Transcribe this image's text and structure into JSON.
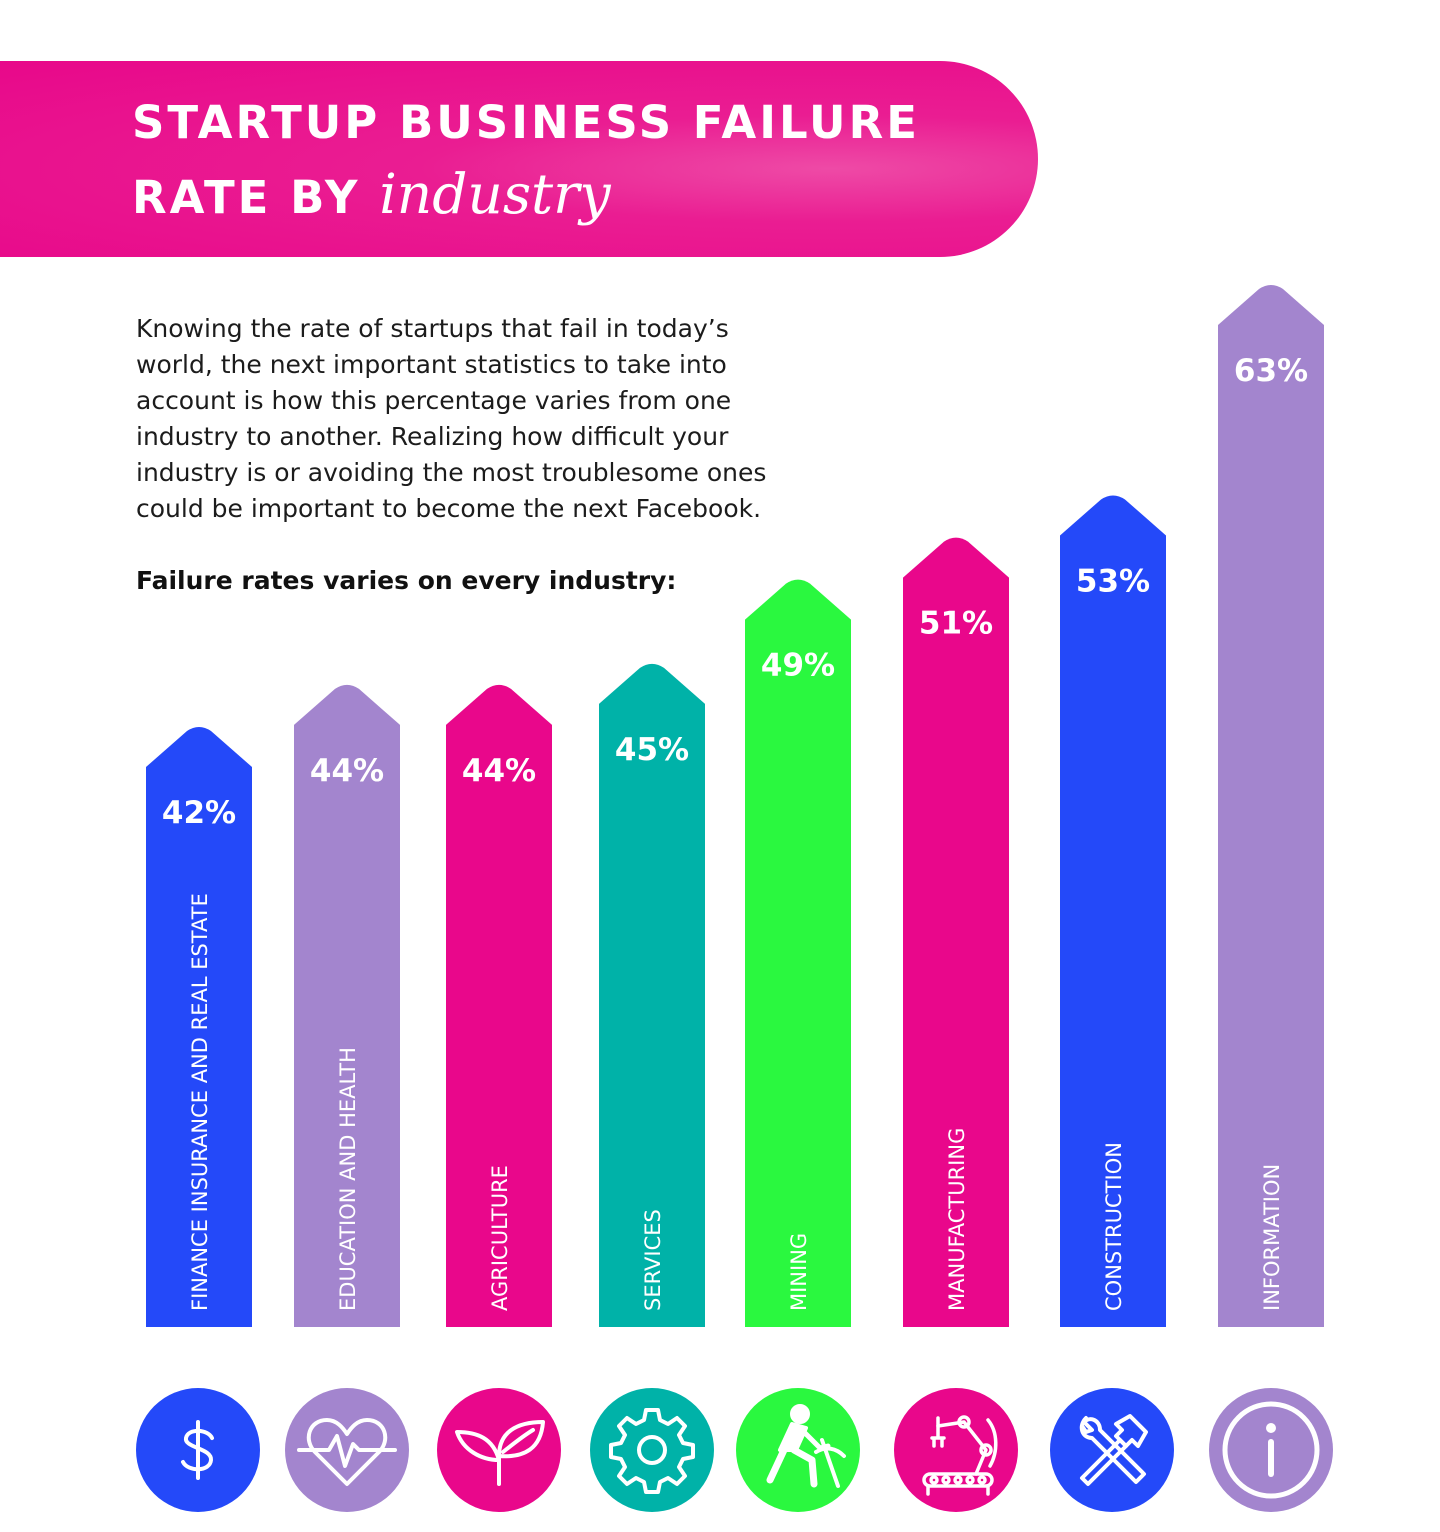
{
  "header": {
    "title_line1": "STARTUP BUSINESS FAILURE",
    "title_line2_prefix": "RATE BY",
    "title_line2_italic": "industry"
  },
  "intro": {
    "paragraph": "Knowing the rate of startups that fail in today’s world, the next important statistics to take into account is how this percentage varies from one industry to another. Realizing how difficult your industry is or avoiding the most troublesome ones could be important to become the next Facebook.",
    "bold_line": "Failure rates varies on every industry:"
  },
  "chart_data": {
    "type": "bar",
    "title": "STARTUP BUSINESS FAILURE RATE BY industry",
    "categories": [
      "FINANCE INSURANCE AND REAL ESTATE",
      "EDUCATION AND HEALTH",
      "AGRICULTURE",
      "SERVICES",
      "MINING",
      "MANUFACTURING",
      "CONSTRUCTION",
      "INFORMATION"
    ],
    "values": [
      42,
      44,
      44,
      45,
      49,
      51,
      53,
      63
    ],
    "value_labels": [
      "42%",
      "44%",
      "44%",
      "45%",
      "49%",
      "51%",
      "53%",
      "63%"
    ],
    "unit": "%",
    "colors": [
      "#2449f9",
      "#a385ce",
      "#e9078b",
      "#00b2a8",
      "#2af83f",
      "#e9078b",
      "#2449f9",
      "#a385ce"
    ],
    "grid": false,
    "legend": "none"
  },
  "icons": [
    {
      "name": "dollar-icon",
      "color": "#2449f9"
    },
    {
      "name": "heart-pulse-icon",
      "color": "#a385ce"
    },
    {
      "name": "sprout-icon",
      "color": "#e9078b"
    },
    {
      "name": "gear-icon",
      "color": "#00b2a8"
    },
    {
      "name": "miner-icon",
      "color": "#2af83f"
    },
    {
      "name": "robot-arm-conveyor-icon",
      "color": "#e9078b"
    },
    {
      "name": "hammer-wrench-icon",
      "color": "#2449f9"
    },
    {
      "name": "info-icon",
      "color": "#a385ce"
    }
  ]
}
